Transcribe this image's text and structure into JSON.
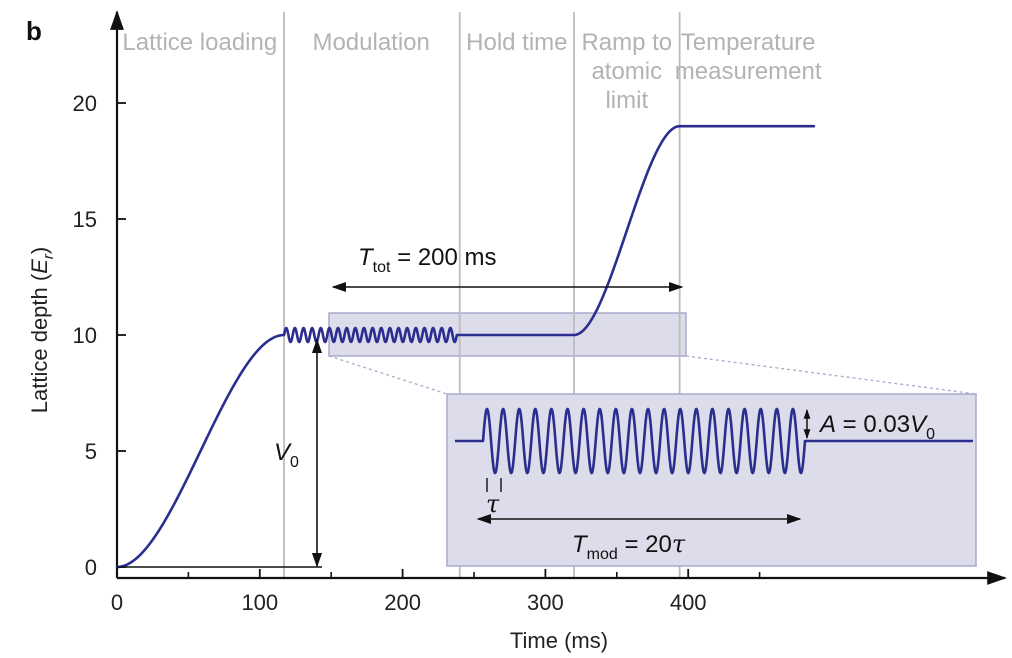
{
  "chart_data": {
    "type": "line",
    "panel_label": "b",
    "xlabel": "Time (ms)",
    "ylabel_parts": {
      "main": "Lattice depth (",
      "italic": "E",
      "sub": "r",
      "close": ")"
    },
    "xlim": [
      0,
      490
    ],
    "ylim": [
      0,
      22
    ],
    "xticks": [
      0,
      100,
      200,
      300,
      400
    ],
    "minor_xticks": [
      50,
      150,
      250,
      350,
      450
    ],
    "yticks": [
      0,
      5,
      10,
      15,
      20
    ],
    "phase_boundaries": [
      117,
      240,
      320,
      394
    ],
    "phases": [
      {
        "line1": "Lattice loading",
        "line2": "",
        "line3": "",
        "center": 58
      },
      {
        "line1": "Modulation",
        "line2": "",
        "line3": "",
        "center": 178
      },
      {
        "line1": "Hold time",
        "line2": "",
        "line3": "",
        "center": 280
      },
      {
        "line1": "Ramp to",
        "line2": "atomic",
        "line3": "limit",
        "center": 357
      },
      {
        "line1": "Temperature",
        "line2": "measurement",
        "line3": "",
        "center": 442
      }
    ],
    "series": [
      {
        "segments": [
          {
            "kind": "s-ramp",
            "x_start": 0,
            "x_end": 117,
            "y_start": 0,
            "y_end": 10
          },
          {
            "kind": "modulation",
            "x_start": 117,
            "x_end": 238,
            "y": 10,
            "cycles": 20
          },
          {
            "kind": "flat",
            "x_start": 238,
            "x_end": 320,
            "y": 10
          },
          {
            "kind": "s-ramp",
            "x_start": 320,
            "x_end": 394,
            "y_start": 10,
            "y_end": 19
          },
          {
            "kind": "flat",
            "x_start": 394,
            "x_end": 488,
            "y": 19
          }
        ]
      }
    ],
    "annotations": {
      "ttot": {
        "symbol": "T",
        "sub": "tot",
        "rest": " = 200 ms"
      },
      "v0": {
        "symbol": "V",
        "sub": "0"
      },
      "inset": {
        "amp": {
          "prefix": "A",
          "mid": " = 0.03",
          "symbol": "V",
          "sub": "0"
        },
        "tau": "τ",
        "tmod": {
          "symbol": "T",
          "sub": "mod",
          "rest": " = 20",
          "tau": "τ"
        },
        "cycles": 20
      }
    },
    "colors": {
      "curve": "#2b2e8f",
      "phase_text": "#b3b3b3",
      "divider": "#bdbdbd",
      "highlight_fill": "#dcdcea",
      "highlight_stroke": "#a9aacc",
      "zoom_line": "#a9aacc"
    }
  }
}
